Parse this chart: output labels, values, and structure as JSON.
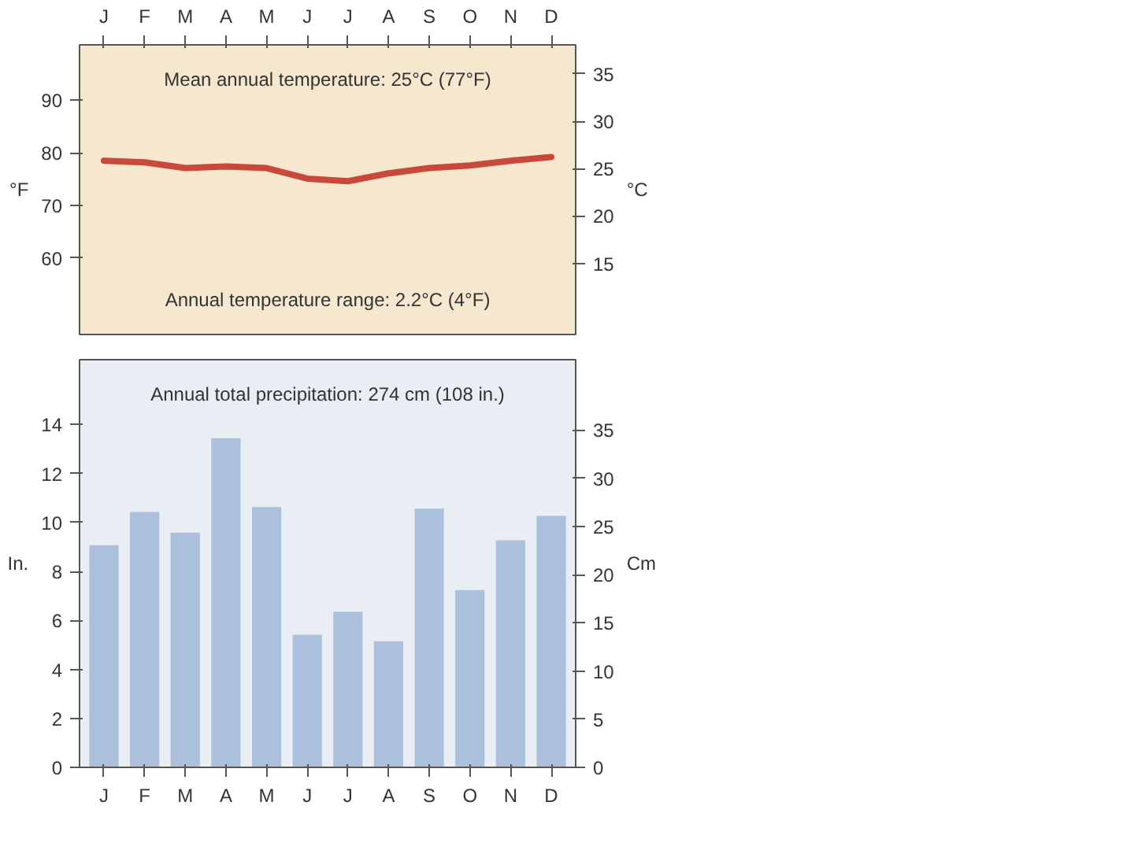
{
  "chart_data": [
    {
      "type": "line",
      "ylabel": "°F",
      "y2label": "°C",
      "annotations": [
        "Mean annual temperature: 25°C (77°F)",
        "Annual temperature range: 2.2°C (4°F)"
      ],
      "categories": [
        "J",
        "F",
        "M",
        "A",
        "M",
        "J",
        "J",
        "A",
        "S",
        "O",
        "N",
        "D"
      ],
      "series": [
        {
          "color": "#c9483c",
          "values": [
            78.5,
            78.2,
            77.1,
            77.4,
            77.1,
            75.1,
            74.6,
            76.1,
            77.1,
            77.6,
            78.5,
            79.2
          ]
        }
      ],
      "ylim": [
        45.5,
        100.5
      ],
      "yticks": [
        60,
        70,
        80,
        90
      ],
      "y2lim": [
        7.5,
        38.06
      ],
      "y2ticks": [
        15,
        20,
        25,
        30,
        35
      ],
      "grid": false
    },
    {
      "type": "bar",
      "ylabel": "In.",
      "y2label": "Cm",
      "annotations": [
        "Annual total precipitation: 274 cm (108 in.)"
      ],
      "categories": [
        "J",
        "F",
        "M",
        "A",
        "M",
        "J",
        "J",
        "A",
        "S",
        "O",
        "N",
        "D"
      ],
      "series": [
        {
          "color": "#abc0da",
          "values": [
            9.07,
            10.43,
            9.59,
            13.44,
            10.63,
            5.42,
            6.36,
            5.15,
            10.57,
            7.24,
            9.27,
            10.27
          ]
        }
      ],
      "ylim": [
        0,
        16.65
      ],
      "yticks": [
        0,
        2,
        4,
        6,
        8,
        10,
        12,
        14
      ],
      "y2lim": [
        0,
        42.3
      ],
      "y2ticks": [
        0,
        5,
        10,
        15,
        20,
        25,
        30,
        35
      ],
      "grid": false
    }
  ]
}
